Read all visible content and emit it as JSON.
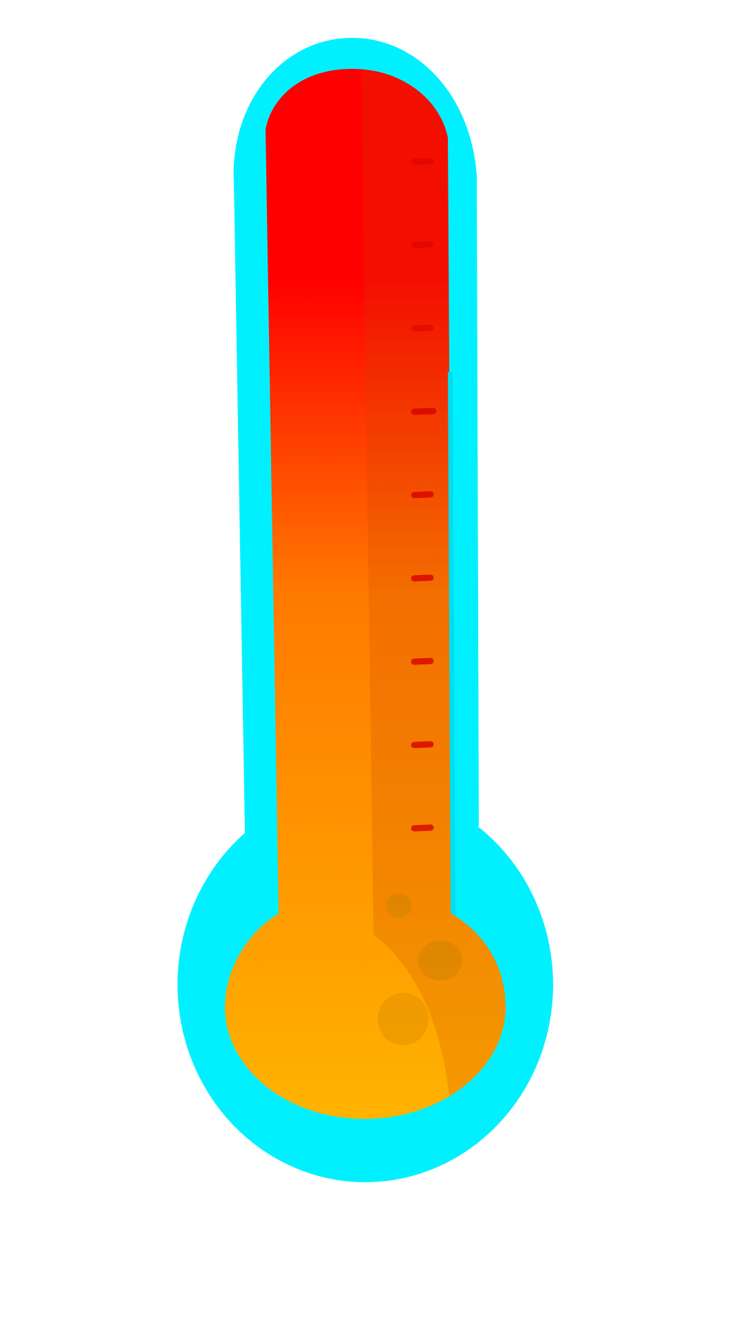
{
  "thermometer": {
    "fill_level": 1.0,
    "tick_mark_count": 9,
    "colors": {
      "outline": "#00F0FF",
      "outline_shadow": "#00DDF0",
      "fill_top": "#FF0000",
      "fill_middle": "#FF7A00",
      "fill_bottom": "#FFB300",
      "shade": "#C84600",
      "tick": "#D80000",
      "bubble": "#D08400",
      "background": "#FFFFFF"
    },
    "icon": "thermometer-icon"
  }
}
